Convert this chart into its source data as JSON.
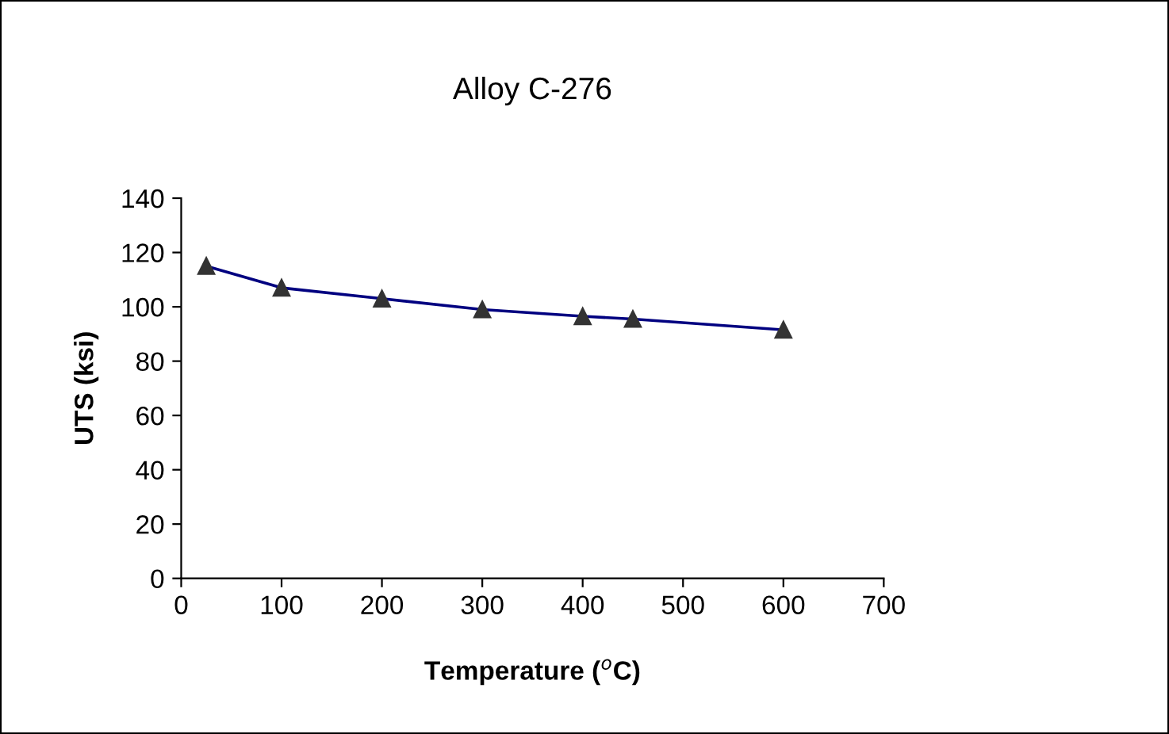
{
  "chart_data": {
    "type": "line",
    "title": "Alloy C-276",
    "xlabel": "Temperature ($^{o}$C)",
    "ylabel": "UTS (ksi)",
    "x": [
      25,
      100,
      200,
      300,
      400,
      450,
      600
    ],
    "series": [
      {
        "color": "#000080",
        "values": [
          115,
          107,
          103,
          99,
          96.5,
          95.5,
          91.5
        ]
      }
    ],
    "xlim": [
      0,
      700
    ],
    "xticks": [
      0,
      100,
      200,
      300,
      400,
      500,
      600,
      700
    ],
    "ylim": [
      0,
      140
    ],
    "yticks": [
      0,
      20,
      40,
      60,
      80,
      100,
      120,
      140
    ],
    "marker": "triangle",
    "line_style": "solid",
    "grid": false,
    "legend": false
  }
}
